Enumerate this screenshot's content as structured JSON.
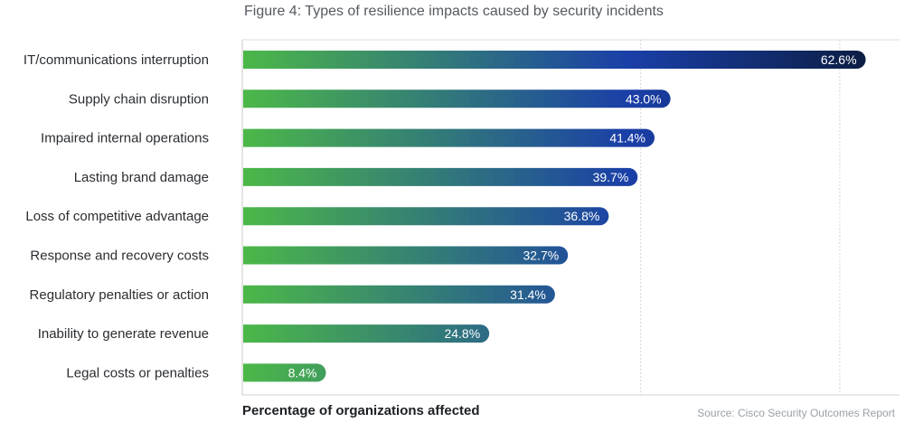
{
  "chart_data": {
    "type": "bar",
    "orientation": "horizontal",
    "title": "Figure 4: Types of resilience impacts caused by security incidents",
    "xlabel": "Percentage of organizations affected",
    "source": "Source: Cisco Security Outcomes Report",
    "categories": [
      "IT/communications interruption",
      "Supply chain disruption",
      "Impaired internal operations",
      "Lasting brand damage",
      "Loss of competitive advantage",
      "Response and recovery costs",
      "Regulatory penalties or action",
      "Inability to generate revenue",
      "Legal costs or penalties"
    ],
    "values": [
      62.6,
      43.0,
      41.4,
      39.7,
      36.8,
      32.7,
      31.4,
      24.8,
      8.4
    ],
    "value_labels": [
      "62.6%",
      "43.0%",
      "41.4%",
      "39.7%",
      "36.8%",
      "32.7%",
      "31.4%",
      "24.8%",
      "8.4%"
    ],
    "xlim": [
      0,
      66
    ],
    "grid": true,
    "gridlines_at": [
      0,
      40,
      60
    ],
    "colors": {
      "gradient_start": "#4cb848",
      "gradient_mid": "#1a3fa8",
      "gradient_end": "#0c1e44"
    }
  }
}
